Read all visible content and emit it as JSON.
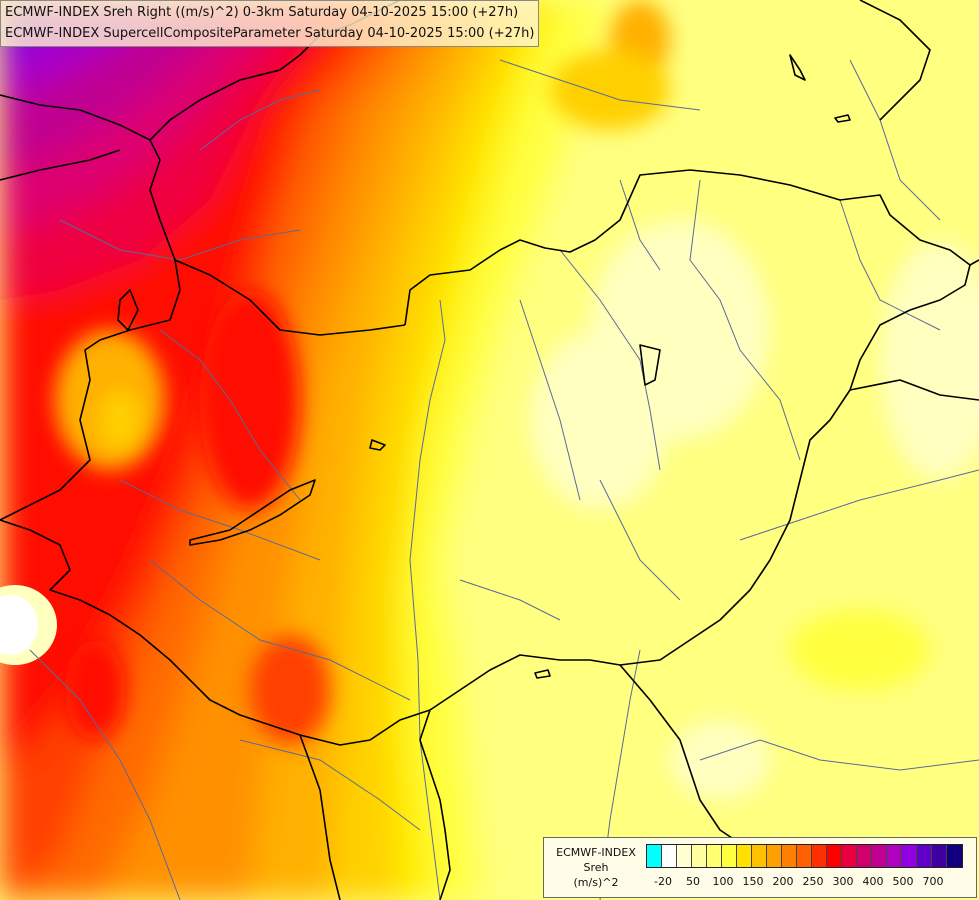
{
  "title": {
    "line1": "ECMWF-INDEX Sreh Right ((m/s)^2) 0-3km Saturday 04-10-2025 15:00 (+27h)",
    "line2": "ECMWF-INDEX SupercellCompositeParameter Saturday 04-10-2025 15:00 (+27h)"
  },
  "legend": {
    "title_line1": "ECMWF-INDEX",
    "title_line2": "Sreh",
    "title_line3": "(m/s)^2",
    "colors": [
      "#00ffff",
      "#ffffff",
      "#ffffd0",
      "#ffffa0",
      "#ffff70",
      "#ffff40",
      "#ffe000",
      "#ffc000",
      "#ffa000",
      "#ff8000",
      "#ff6000",
      "#ff3000",
      "#ff0000",
      "#e80040",
      "#d0006a",
      "#c00090",
      "#b000c0",
      "#9000e0",
      "#6000c8",
      "#4000a0",
      "#100080"
    ],
    "ticks": [
      "-20",
      "50",
      "100",
      "150",
      "200",
      "250",
      "300",
      "400",
      "500",
      "700"
    ],
    "tick_swatch_index": [
      1,
      3,
      5,
      7,
      9,
      11,
      13,
      15,
      17,
      19
    ]
  },
  "map": {
    "field_colors": {
      "white": "#ffffff",
      "pale": "#ffffc0",
      "light_yellow": "#ffff80",
      "yellow": "#ffff40",
      "yellow2": "#fff000",
      "gold": "#ffd000",
      "amber": "#ffb000",
      "orange": "#ff9000",
      "dark_orange": "#ff6a00",
      "red_orange": "#ff4000",
      "red": "#ff1000",
      "crimson": "#ee0040",
      "magenta_red": "#dd0070",
      "magenta": "#c00090",
      "purple": "#a800c8",
      "violet": "#8000e0"
    },
    "border_color": "#000000",
    "river_color": "#5a6a9a"
  }
}
